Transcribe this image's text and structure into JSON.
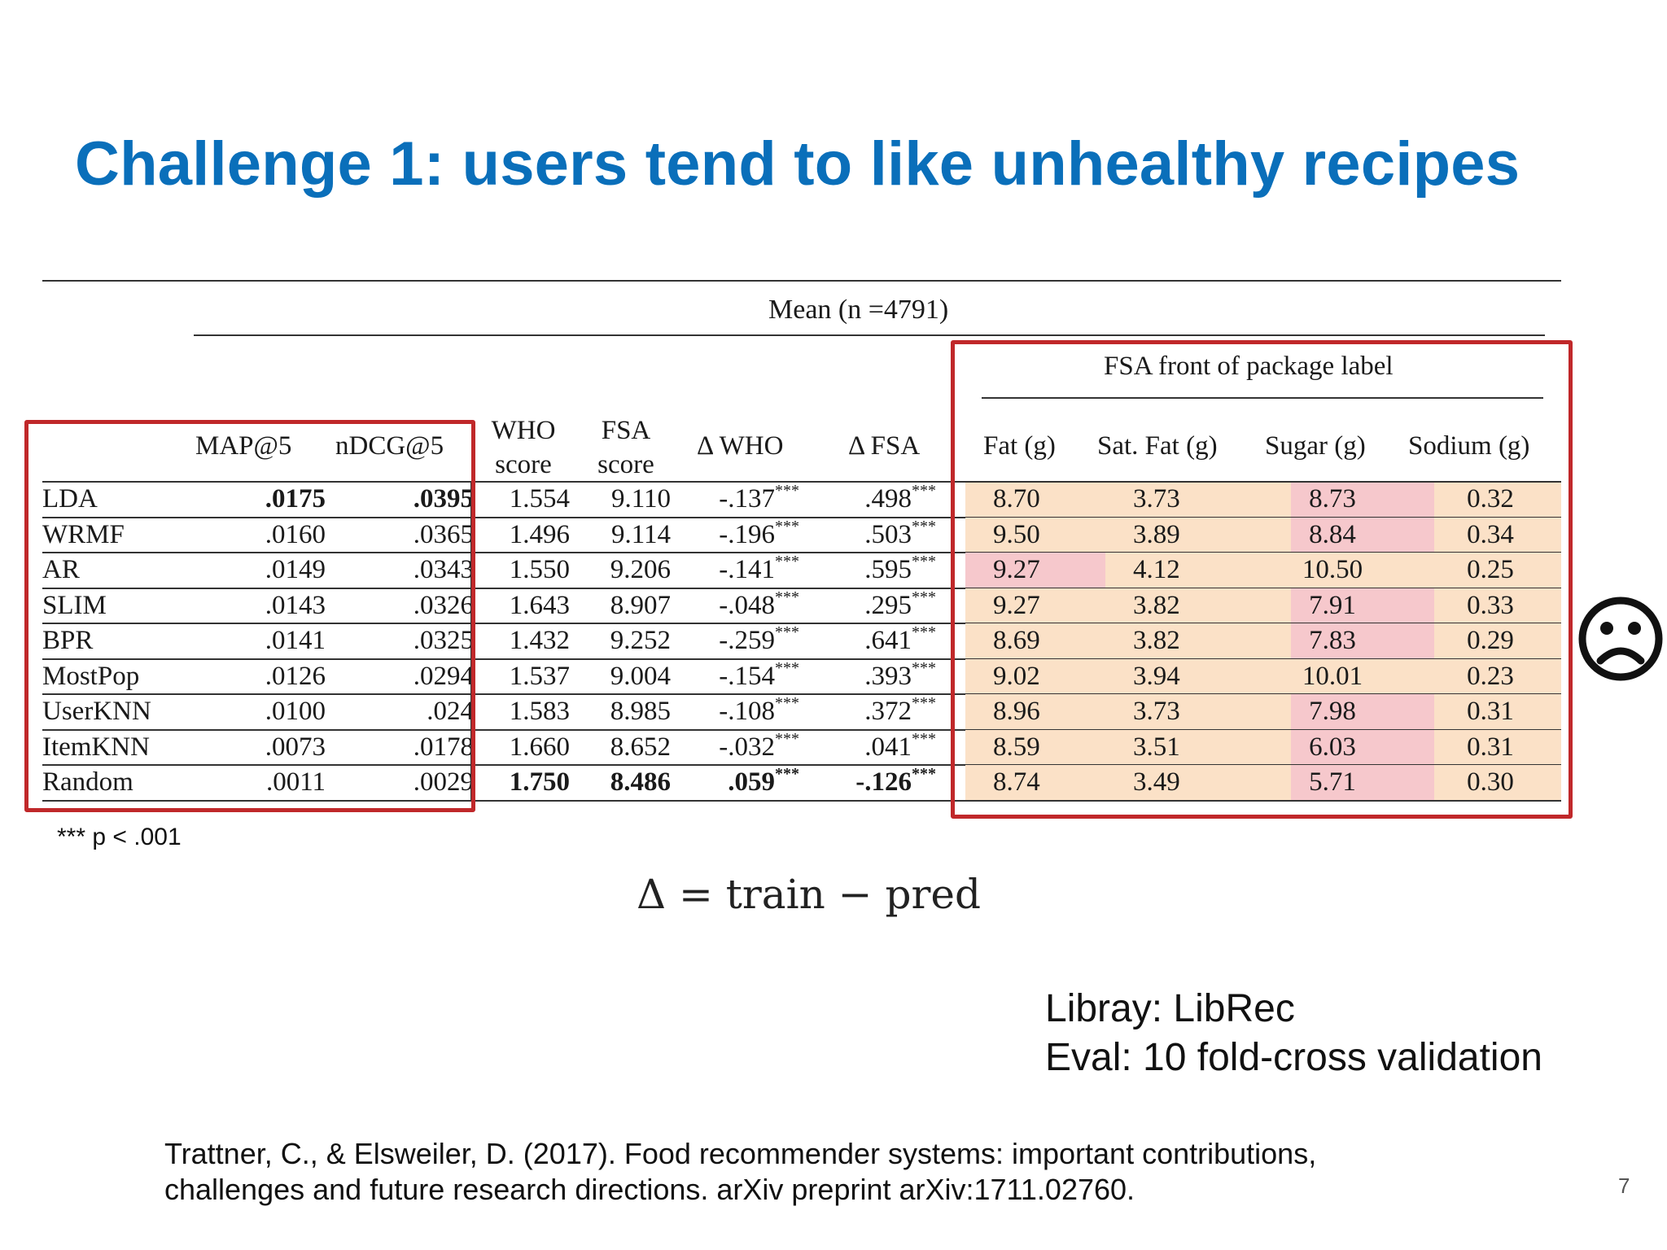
{
  "slide": {
    "title": "Challenge 1: users tend to like unhealthy recipes",
    "footnote": "*** p < .001",
    "formula": "Δ = train − pred",
    "library": "Libray: LibRec",
    "eval": "Eval: 10 fold-cross validation",
    "citation_line1": "Trattner, C., & Elsweiler, D. (2017). Food recommender systems: important contributions,",
    "citation_line2": "challenges and future research directions. arXiv preprint arXiv:1711.02760.",
    "page_number": "7",
    "sad_face_icon": "frowning-face-icon"
  },
  "table": {
    "mean_header": "Mean (n =4791)",
    "fsa_header": "FSA front of package label",
    "columns": {
      "map": "MAP@5",
      "ndcg": "nDCG@5",
      "who_top": "WHO",
      "who_bottom": "score",
      "fsa_top": "FSA",
      "fsa_bottom": "score",
      "dwho": "Δ WHO",
      "dfsa": "Δ FSA",
      "fat": "Fat (g)",
      "satfat": "Sat. Fat (g)",
      "sugar": "Sugar (g)",
      "sodium": "Sodium (g)"
    },
    "significance": "***",
    "colors": {
      "peach": "#fbe1c7",
      "pink": "#f6c8cc",
      "box_red": "#c0282a"
    },
    "rows": [
      {
        "name": "LDA",
        "map": ".0175",
        "ndcg": ".0395",
        "who": "1.554",
        "fsa": "9.110",
        "dwho": "-.137",
        "dfsa": ".498",
        "fat": "8.70",
        "satfat": "3.73",
        "sugar": "8.73",
        "sodium": "0.32"
      },
      {
        "name": "WRMF",
        "map": ".0160",
        "ndcg": ".0365",
        "who": "1.496",
        "fsa": "9.114",
        "dwho": "-.196",
        "dfsa": ".503",
        "fat": "9.50",
        "satfat": "3.89",
        "sugar": "8.84",
        "sodium": "0.34"
      },
      {
        "name": "AR",
        "map": ".0149",
        "ndcg": ".0343",
        "who": "1.550",
        "fsa": "9.206",
        "dwho": "-.141",
        "dfsa": ".595",
        "fat": "9.27",
        "satfat": "4.12",
        "sugar": "10.50",
        "sodium": "0.25"
      },
      {
        "name": "SLIM",
        "map": ".0143",
        "ndcg": ".0326",
        "who": "1.643",
        "fsa": "8.907",
        "dwho": "-.048",
        "dfsa": ".295",
        "fat": "9.27",
        "satfat": "3.82",
        "sugar": "7.91",
        "sodium": "0.33"
      },
      {
        "name": "BPR",
        "map": ".0141",
        "ndcg": ".0325",
        "who": "1.432",
        "fsa": "9.252",
        "dwho": "-.259",
        "dfsa": ".641",
        "fat": "8.69",
        "satfat": "3.82",
        "sugar": "7.83",
        "sodium": "0.29"
      },
      {
        "name": "MostPop",
        "map": ".0126",
        "ndcg": ".0294",
        "who": "1.537",
        "fsa": "9.004",
        "dwho": "-.154",
        "dfsa": ".393",
        "fat": "9.02",
        "satfat": "3.94",
        "sugar": "10.01",
        "sodium": "0.23"
      },
      {
        "name": "UserKNN",
        "map": ".0100",
        "ndcg": ".024",
        "who": "1.583",
        "fsa": "8.985",
        "dwho": "-.108",
        "dfsa": ".372",
        "fat": "8.96",
        "satfat": "3.73",
        "sugar": "7.98",
        "sodium": "0.31"
      },
      {
        "name": "ItemKNN",
        "map": ".0073",
        "ndcg": ".0178",
        "who": "1.660",
        "fsa": "8.652",
        "dwho": "-.032",
        "dfsa": ".041",
        "fat": "8.59",
        "satfat": "3.51",
        "sugar": "6.03",
        "sodium": "0.31"
      },
      {
        "name": "Random",
        "map": ".0011",
        "ndcg": ".0029",
        "who": "1.750",
        "fsa": "8.486",
        "dwho": ".059",
        "dfsa": "-.126",
        "fat": "8.74",
        "satfat": "3.49",
        "sugar": "5.71",
        "sodium": "0.30"
      }
    ]
  }
}
